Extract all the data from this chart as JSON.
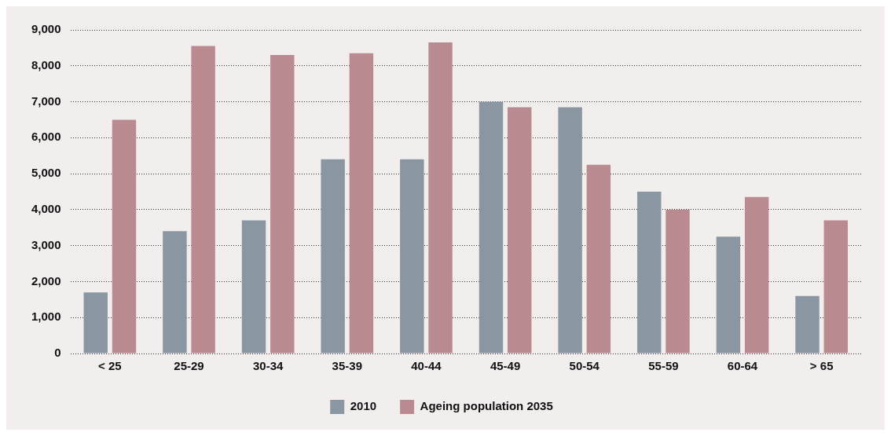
{
  "chart_data": {
    "type": "bar",
    "categories": [
      "< 25",
      "25-29",
      "30-34",
      "35-39",
      "40-44",
      "45-49",
      "50-54",
      "55-59",
      "60-64",
      "> 65"
    ],
    "series": [
      {
        "name": "2010",
        "color": "#8a96a1",
        "values": [
          1700,
          3400,
          3700,
          5400,
          5400,
          7000,
          6850,
          4500,
          3250,
          1600
        ]
      },
      {
        "name": "Ageing population 2035",
        "color": "#b98a90",
        "values": [
          6500,
          8550,
          8300,
          8350,
          8650,
          6850,
          5250,
          4000,
          4350,
          3700
        ]
      }
    ],
    "ylim": [
      0,
      9000
    ],
    "yticks": [
      0,
      {
        "value": 1000,
        "label": "1,000"
      },
      {
        "value": 2000,
        "label": "2,000"
      },
      {
        "value": 3000,
        "label": "3,000"
      },
      {
        "value": 4000,
        "label": "4,000"
      },
      {
        "value": 5000,
        "label": "5,000"
      },
      {
        "value": 6000,
        "label": "6,000"
      },
      {
        "value": 7000,
        "label": "7,000"
      },
      {
        "value": 8000,
        "label": "8,000"
      },
      {
        "value": 9000,
        "label": "9,000"
      }
    ],
    "grid": "y",
    "legend": "bottom"
  }
}
